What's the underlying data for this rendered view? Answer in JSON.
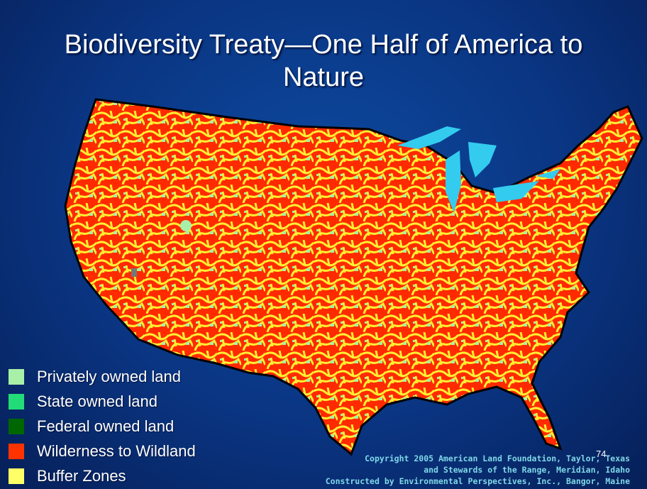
{
  "title": "Biodiversity Treaty—One Half of America to Nature",
  "legend": [
    {
      "label": "Privately owned land",
      "color": "#a8f0a8"
    },
    {
      "label": "State owned land",
      "color": "#22dd77"
    },
    {
      "label": "Federal owned land",
      "color": "#006600"
    },
    {
      "label": "Wilderness to Wildland",
      "color": "#ff3300"
    },
    {
      "label": "Buffer Zones",
      "color": "#ffff66"
    }
  ],
  "copyright": [
    "Copyright 2005 American Land Foundation, Taylor, Texas",
    "and Stewards of the Range, Meridian, Idaho",
    "Constructed by Environmental Perspectives, Inc., Bangor, Maine"
  ],
  "page_number": "74"
}
